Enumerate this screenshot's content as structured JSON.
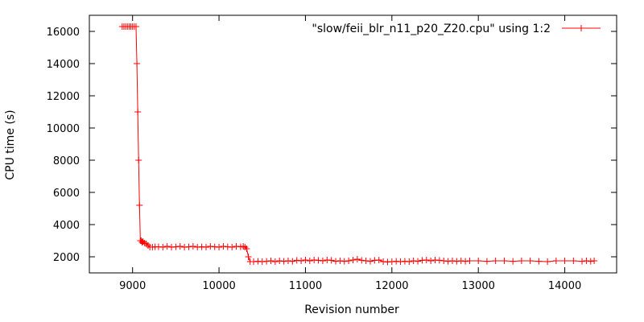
{
  "chart_data": {
    "type": "line",
    "title": "",
    "xlabel": "Revision number",
    "ylabel": "CPU time (s)",
    "xlim": [
      8500,
      14600
    ],
    "ylim": [
      1000,
      17000
    ],
    "x_ticks": [
      9000,
      10000,
      11000,
      12000,
      13000,
      14000
    ],
    "y_ticks": [
      2000,
      4000,
      6000,
      8000,
      10000,
      12000,
      14000,
      16000
    ],
    "grid": false,
    "legend_position": "top-right",
    "series": [
      {
        "name": "\"slow/feii_blr_n11_p20_Z20.cpu\" using 1:2",
        "color": "#ff0000",
        "marker": "plus",
        "x": [
          8880,
          8900,
          8920,
          8940,
          8960,
          8980,
          9000,
          9020,
          9040,
          9050,
          9060,
          9070,
          9080,
          9090,
          9100,
          9110,
          9120,
          9140,
          9160,
          9180,
          9200,
          9230,
          9260,
          9300,
          9350,
          9400,
          9450,
          9500,
          9550,
          9600,
          9650,
          9700,
          9750,
          9800,
          9850,
          9900,
          9950,
          10000,
          10050,
          10100,
          10150,
          10200,
          10250,
          10280,
          10300,
          10320,
          10340,
          10360,
          10400,
          10450,
          10500,
          10550,
          10600,
          10650,
          10700,
          10750,
          10800,
          10850,
          10900,
          10950,
          11000,
          11050,
          11100,
          11150,
          11200,
          11250,
          11300,
          11350,
          11400,
          11450,
          11500,
          11550,
          11600,
          11650,
          11700,
          11750,
          11800,
          11850,
          11900,
          11950,
          12000,
          12050,
          12100,
          12150,
          12200,
          12250,
          12300,
          12350,
          12400,
          12450,
          12500,
          12550,
          12600,
          12650,
          12700,
          12750,
          12800,
          12850,
          12900,
          13000,
          13100,
          13200,
          13300,
          13400,
          13500,
          13600,
          13700,
          13800,
          13900,
          14000,
          14100,
          14200,
          14250,
          14300,
          14340
        ],
        "y": [
          16300,
          16300,
          16300,
          16300,
          16300,
          16300,
          16300,
          16300,
          16300,
          14000,
          11000,
          8000,
          5200,
          3000,
          3000,
          2900,
          2950,
          2850,
          2800,
          2700,
          2600,
          2600,
          2620,
          2620,
          2600,
          2650,
          2600,
          2620,
          2650,
          2600,
          2620,
          2650,
          2600,
          2620,
          2600,
          2650,
          2620,
          2600,
          2650,
          2620,
          2600,
          2650,
          2620,
          2650,
          2600,
          2500,
          2000,
          1700,
          1700,
          1720,
          1700,
          1720,
          1750,
          1700,
          1750,
          1720,
          1750,
          1720,
          1780,
          1750,
          1800,
          1750,
          1800,
          1780,
          1750,
          1800,
          1780,
          1720,
          1750,
          1720,
          1750,
          1800,
          1850,
          1780,
          1750,
          1720,
          1780,
          1800,
          1700,
          1680,
          1700,
          1720,
          1700,
          1720,
          1700,
          1750,
          1720,
          1780,
          1800,
          1750,
          1800,
          1780,
          1750,
          1720,
          1750,
          1720,
          1750,
          1720,
          1750,
          1750,
          1720,
          1750,
          1750,
          1720,
          1750,
          1750,
          1720,
          1700,
          1750,
          1750,
          1750,
          1720,
          1750,
          1720,
          1750
        ]
      }
    ]
  }
}
